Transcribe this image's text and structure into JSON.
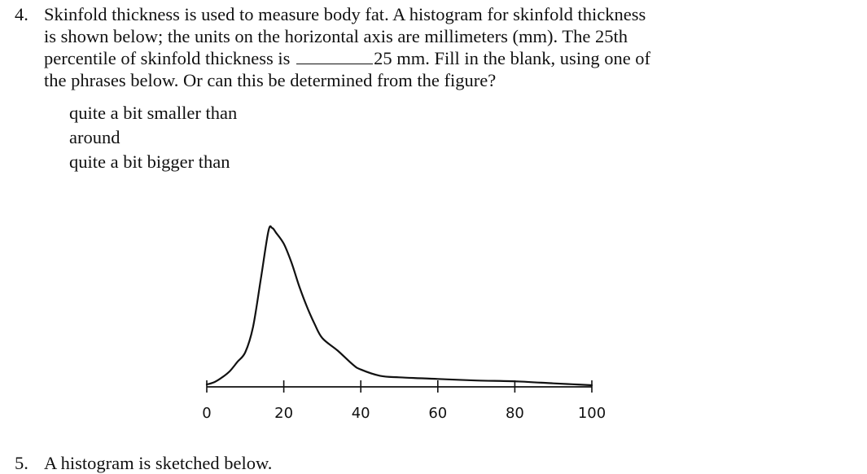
{
  "question": {
    "number": "4.",
    "line1": "Skinfold thickness is used to measure body fat. A histogram for skinfold thickness",
    "line2": "is shown below; the units on the horizontal axis are millimeters (mm). The 25th",
    "line3_before_blank": "percentile of skinfold thickness is",
    "line3_after_blank": "25 mm. Fill in the blank, using one of",
    "line4": "the phrases below. Or can this be determined from the figure?"
  },
  "options": [
    "quite a bit smaller than",
    "around",
    "quite a bit bigger than"
  ],
  "next_question": {
    "number": "5.",
    "text": "A histogram is sketched below."
  },
  "chart_data": {
    "type": "area",
    "title": "",
    "xlabel": "",
    "ylabel": "",
    "xlim": [
      0,
      100
    ],
    "x_ticks": [
      0,
      20,
      40,
      60,
      80,
      100
    ],
    "x_tick_labels": [
      "0",
      "20",
      "40",
      "60",
      "80",
      "100"
    ],
    "grid": false,
    "series": [
      {
        "x": [
          0,
          2,
          4,
          6,
          8,
          10,
          12,
          14,
          16,
          17,
          18,
          20,
          22,
          24,
          26,
          28,
          30,
          34,
          38,
          40,
          45,
          50,
          60,
          70,
          80,
          90,
          95,
          100
        ],
        "y": [
          0.5,
          2,
          5,
          9,
          15,
          21,
          37,
          67,
          98,
          100,
          97,
          90,
          78,
          63,
          50,
          39,
          30,
          22,
          13,
          10,
          6,
          5,
          4,
          3,
          2.5,
          1.2,
          0.6,
          0
        ]
      }
    ]
  }
}
